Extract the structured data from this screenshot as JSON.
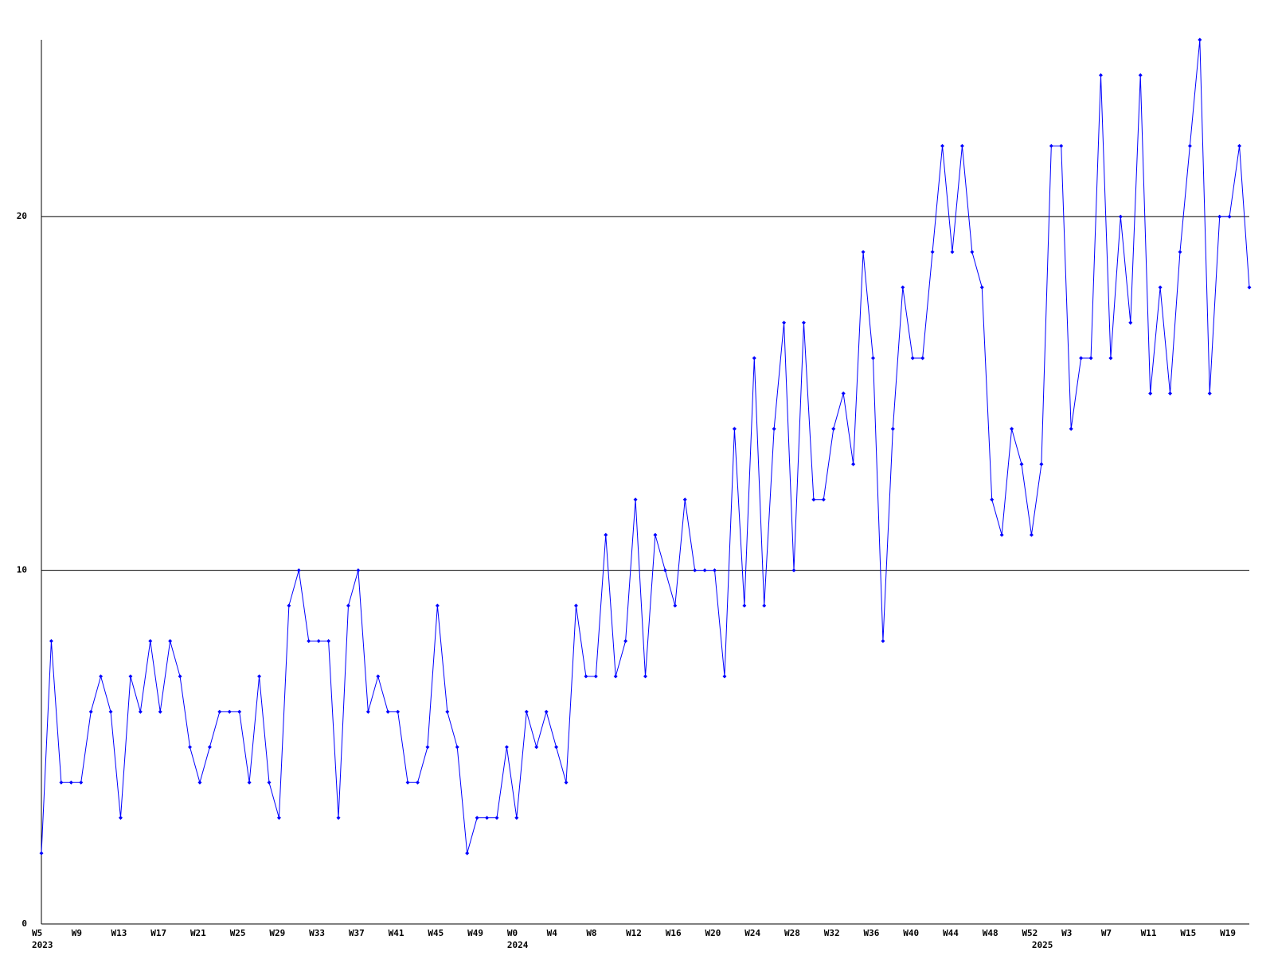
{
  "chart_data": {
    "type": "line",
    "categories": [
      "W5",
      null,
      null,
      null,
      "W9",
      null,
      null,
      null,
      "W13",
      null,
      null,
      null,
      "W17",
      null,
      null,
      null,
      "W21",
      null,
      null,
      null,
      "W25",
      null,
      null,
      null,
      "W29",
      null,
      null,
      null,
      "W33",
      null,
      null,
      null,
      "W37",
      null,
      null,
      null,
      "W41",
      null,
      null,
      null,
      "W45",
      null,
      null,
      null,
      "W49",
      null,
      null,
      null,
      "W0",
      null,
      null,
      null,
      "W4",
      null,
      null,
      null,
      "W8",
      null,
      null,
      null,
      "W12",
      null,
      null,
      null,
      "W16",
      null,
      null,
      null,
      "W20",
      null,
      null,
      null,
      "W24",
      null,
      null,
      null,
      "W28",
      null,
      null,
      null,
      "W32",
      null,
      null,
      null,
      "W36",
      null,
      null,
      null,
      "W40",
      null,
      null,
      null,
      "W44",
      null,
      null,
      null,
      "W48",
      null,
      null,
      null,
      "W52",
      null,
      null,
      null,
      "W3",
      null,
      null,
      null,
      "W7",
      null,
      null,
      null,
      "W11",
      null,
      null,
      null,
      "W15",
      null,
      null,
      null,
      "W19",
      null,
      null
    ],
    "category_groups": [
      "2023",
      null,
      null,
      null,
      null,
      null,
      null,
      null,
      null,
      null,
      null,
      null,
      null,
      null,
      null,
      null,
      null,
      null,
      null,
      null,
      null,
      null,
      null,
      null,
      null,
      null,
      null,
      null,
      null,
      null,
      null,
      null,
      null,
      null,
      null,
      null,
      null,
      null,
      null,
      null,
      null,
      null,
      null,
      null,
      null,
      null,
      null,
      null,
      "2024",
      null,
      null,
      null,
      null,
      null,
      null,
      null,
      null,
      null,
      null,
      null,
      null,
      null,
      null,
      null,
      null,
      null,
      null,
      null,
      null,
      null,
      null,
      null,
      null,
      null,
      null,
      null,
      null,
      null,
      null,
      null,
      null,
      null,
      null,
      null,
      null,
      null,
      null,
      null,
      null,
      null,
      null,
      null,
      null,
      null,
      null,
      null,
      null,
      null,
      null,
      null,
      null,
      "2025",
      null,
      null,
      null,
      null,
      null,
      null,
      null,
      null,
      null,
      null,
      null,
      null,
      null,
      null,
      null,
      null,
      null,
      null,
      null,
      null,
      null
    ],
    "series": [
      {
        "color": "#0000ff",
        "values": [
          2,
          8,
          4,
          4,
          4,
          6,
          7,
          6,
          3,
          7,
          6,
          8,
          6,
          8,
          7,
          5,
          4,
          5,
          6,
          6,
          6,
          4,
          7,
          4,
          3,
          9,
          10,
          8,
          8,
          8,
          3,
          9,
          10,
          6,
          7,
          6,
          6,
          4,
          4,
          5,
          9,
          6,
          5,
          2,
          3,
          3,
          3,
          5,
          3,
          6,
          5,
          6,
          5,
          4,
          9,
          7,
          7,
          11,
          7,
          8,
          12,
          7,
          11,
          10,
          9,
          12,
          10,
          10,
          10,
          7,
          14,
          9,
          16,
          9,
          14,
          17,
          10,
          17,
          12,
          12,
          14,
          15,
          13,
          19,
          16,
          8,
          14,
          18,
          16,
          16,
          19,
          22,
          19,
          22,
          19,
          18,
          12,
          11,
          14,
          13,
          11,
          13,
          22,
          22,
          14,
          16,
          16,
          24,
          16,
          20,
          17,
          24,
          15,
          18,
          15,
          19,
          22,
          25,
          15,
          20,
          20,
          22,
          18
        ]
      }
    ],
    "ylim": [
      0,
      25
    ],
    "yticks": [
      0,
      10,
      20
    ],
    "grid": true
  }
}
